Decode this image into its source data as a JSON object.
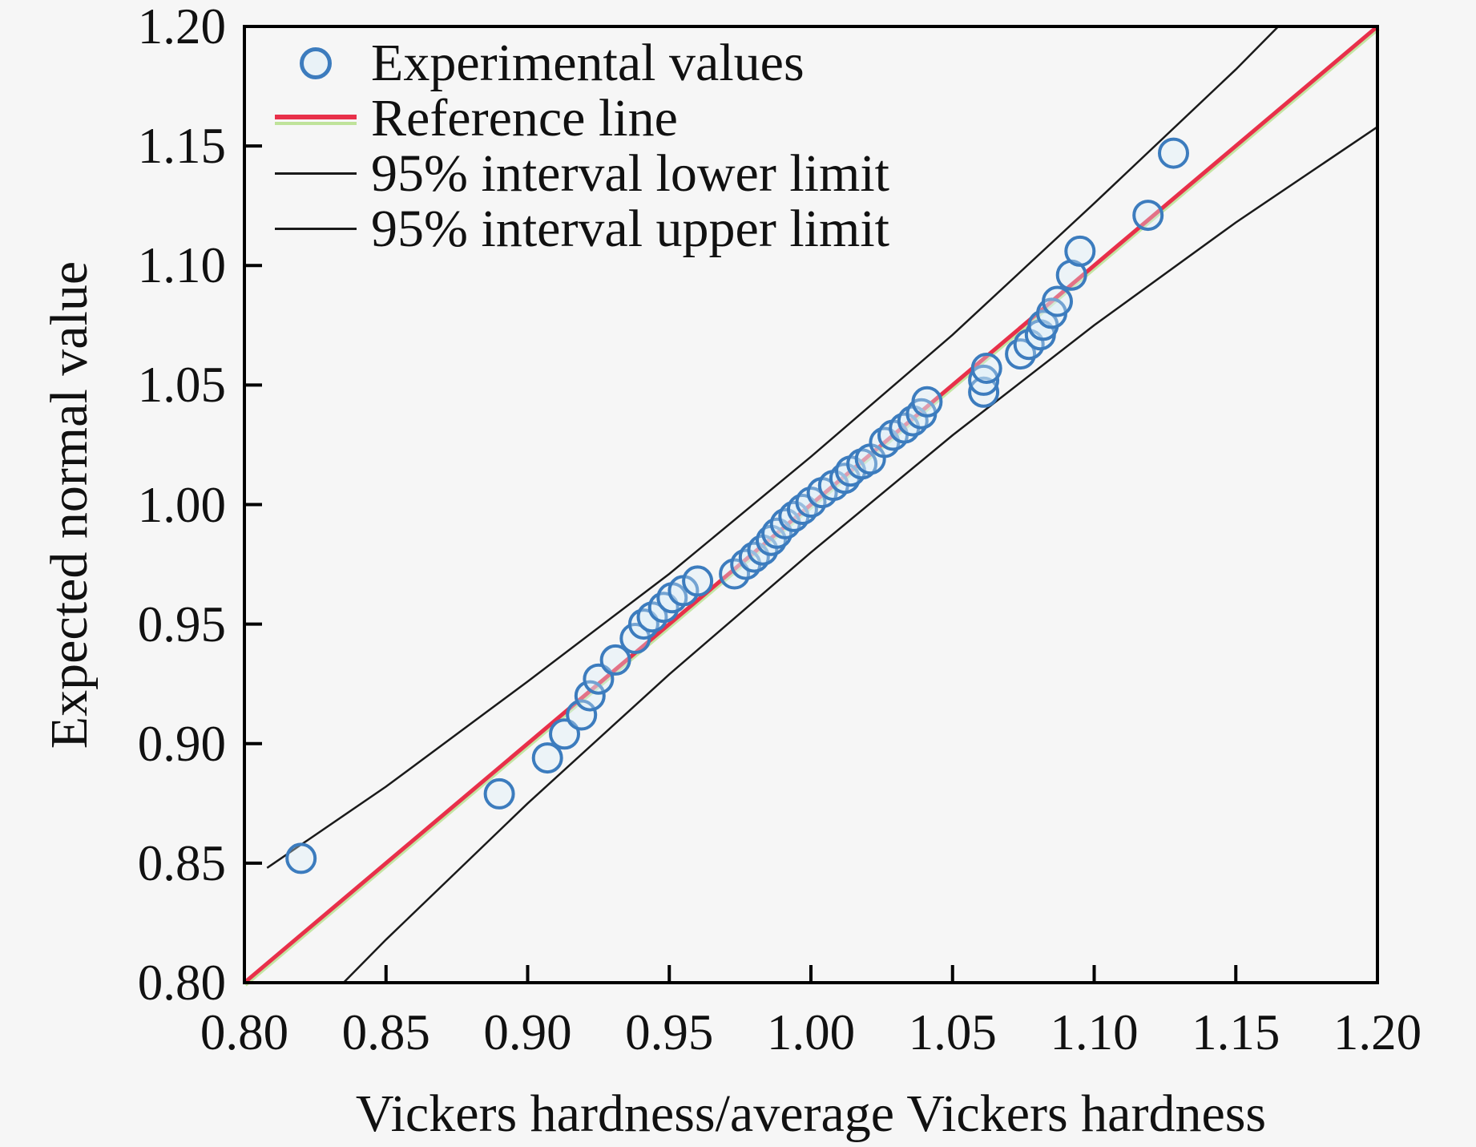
{
  "chart_data": {
    "type": "scatter",
    "title": "",
    "xlabel": "Vickers hardness/average Vickers hardness",
    "ylabel": "Expected normal value",
    "xlim": [
      0.8,
      1.2
    ],
    "ylim": [
      0.8,
      1.2
    ],
    "xticks": [
      0.8,
      0.85,
      0.9,
      0.95,
      1.0,
      1.05,
      1.1,
      1.15,
      1.2
    ],
    "yticks": [
      0.8,
      0.85,
      0.9,
      0.95,
      1.0,
      1.05,
      1.1,
      1.15,
      1.2
    ],
    "tick_decimals": 2,
    "grid": false,
    "legend_position": "top-left-inside",
    "colors": {
      "marker_stroke": "#3c7cbe",
      "marker_halo": "#d9eef8",
      "reference_line": "#e8304a",
      "reference_underlay": "#bfe39a",
      "limit_lines": "#1a1a1a",
      "frame": "#000000",
      "text": "#111111",
      "background": "#f6f6f6"
    },
    "legend": [
      {
        "label": "Experimental values",
        "swatch": "circle-marker"
      },
      {
        "label": "Reference line",
        "swatch": "red-line"
      },
      {
        "label": "95% interval lower limit",
        "swatch": "black-line"
      },
      {
        "label": "95% interval upper limit",
        "swatch": "black-line"
      }
    ],
    "series": [
      {
        "name": "Experimental values",
        "type": "scatter",
        "marker": "open-circle",
        "points": [
          [
            0.82,
            0.852
          ],
          [
            0.89,
            0.879
          ],
          [
            0.907,
            0.894
          ],
          [
            0.913,
            0.904
          ],
          [
            0.919,
            0.912
          ],
          [
            0.922,
            0.92
          ],
          [
            0.925,
            0.927
          ],
          [
            0.931,
            0.935
          ],
          [
            0.938,
            0.944
          ],
          [
            0.941,
            0.95
          ],
          [
            0.944,
            0.953
          ],
          [
            0.948,
            0.957
          ],
          [
            0.951,
            0.961
          ],
          [
            0.955,
            0.964
          ],
          [
            0.96,
            0.968
          ],
          [
            0.973,
            0.971
          ],
          [
            0.977,
            0.975
          ],
          [
            0.98,
            0.978
          ],
          [
            0.983,
            0.981
          ],
          [
            0.986,
            0.985
          ],
          [
            0.988,
            0.988
          ],
          [
            0.991,
            0.992
          ],
          [
            0.994,
            0.995
          ],
          [
            0.997,
            0.998
          ],
          [
            1.0,
            1.001
          ],
          [
            1.004,
            1.005
          ],
          [
            1.008,
            1.008
          ],
          [
            1.012,
            1.011
          ],
          [
            1.014,
            1.014
          ],
          [
            1.018,
            1.017
          ],
          [
            1.021,
            1.019
          ],
          [
            1.026,
            1.026
          ],
          [
            1.029,
            1.029
          ],
          [
            1.033,
            1.032
          ],
          [
            1.036,
            1.035
          ],
          [
            1.039,
            1.038
          ],
          [
            1.041,
            1.043
          ],
          [
            1.061,
            1.047
          ],
          [
            1.061,
            1.052
          ],
          [
            1.062,
            1.057
          ],
          [
            1.074,
            1.063
          ],
          [
            1.077,
            1.067
          ],
          [
            1.081,
            1.071
          ],
          [
            1.082,
            1.075
          ],
          [
            1.085,
            1.08
          ],
          [
            1.087,
            1.085
          ],
          [
            1.092,
            1.096
          ],
          [
            1.095,
            1.106
          ],
          [
            1.119,
            1.121
          ],
          [
            1.128,
            1.147
          ]
        ]
      },
      {
        "name": "Reference line",
        "type": "line",
        "points": [
          [
            0.8,
            0.8
          ],
          [
            1.2,
            1.2
          ]
        ]
      },
      {
        "name": "95% interval lower limit",
        "type": "line",
        "points": [
          [
            0.808,
            0.848
          ],
          [
            0.85,
            0.882
          ],
          [
            0.9,
            0.926
          ],
          [
            0.95,
            0.971
          ],
          [
            1.0,
            1.02
          ],
          [
            1.05,
            1.071
          ],
          [
            1.1,
            1.126
          ],
          [
            1.15,
            1.182
          ],
          [
            1.165,
            1.2
          ]
        ]
      },
      {
        "name": "95% interval upper limit",
        "type": "line",
        "points": [
          [
            0.835,
            0.8
          ],
          [
            0.85,
            0.818
          ],
          [
            0.9,
            0.875
          ],
          [
            0.95,
            0.929
          ],
          [
            1.0,
            0.98
          ],
          [
            1.05,
            1.029
          ],
          [
            1.1,
            1.075
          ],
          [
            1.15,
            1.118
          ],
          [
            1.2,
            1.158
          ]
        ]
      }
    ]
  }
}
